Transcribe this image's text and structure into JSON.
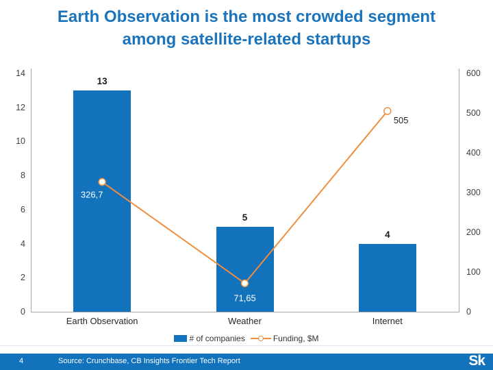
{
  "title": {
    "line1_pre": "Earth Observation is the ",
    "line1_bold": "most crowded",
    "line1_post": " segment",
    "line2": "among satellite-related startups",
    "color": "#1B74BB"
  },
  "chart_data": {
    "type": "bar",
    "subtype": "bar-line-combo",
    "categories": [
      "Earth Observation",
      "Weather",
      "Internet"
    ],
    "series": [
      {
        "name": "# of companies",
        "type": "bar",
        "axis": "left",
        "values": [
          13,
          5,
          4
        ],
        "labels": [
          "13",
          "5",
          "4"
        ],
        "color": "#1272BC"
      },
      {
        "name": "Funding, $M",
        "type": "line",
        "axis": "right",
        "values": [
          326.7,
          71.65,
          505
        ],
        "labels": [
          "326,7",
          "71,65",
          "505"
        ],
        "color": "#EE8E3F",
        "marker": "open-circle-white"
      }
    ],
    "left_axis": {
      "min": 0,
      "max": 14,
      "step": 2,
      "ticks": [
        0,
        2,
        4,
        6,
        8,
        10,
        12,
        14
      ]
    },
    "right_axis": {
      "min": 0,
      "max": 600,
      "step": 100,
      "ticks": [
        0,
        100,
        200,
        300,
        400,
        500,
        600
      ]
    },
    "grid": false,
    "legend_position": "bottom",
    "legend": [
      {
        "label": "# of companies",
        "swatch": "bar",
        "color": "#1272BC"
      },
      {
        "label": "Funding, $M",
        "swatch": "line",
        "color": "#EE8E3F"
      }
    ]
  },
  "footer": {
    "page_number": "4",
    "source": "Source: Crunchbase, CB Insights Frontier Tech Report",
    "logo": "Sk",
    "bg_color": "#1272BC"
  }
}
